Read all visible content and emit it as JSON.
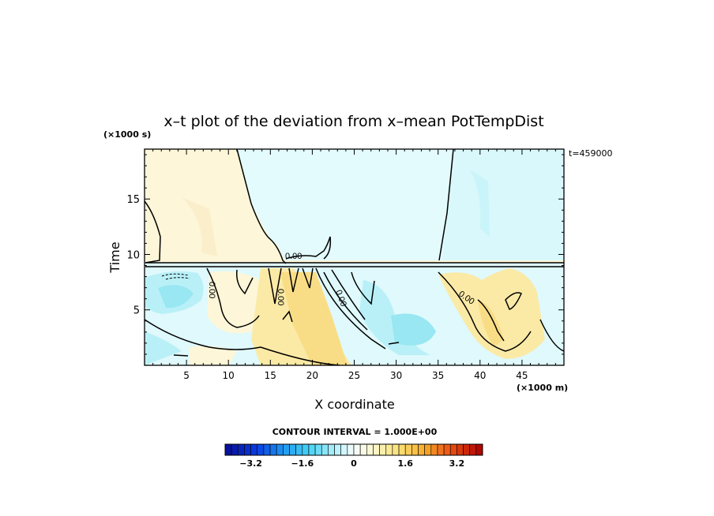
{
  "chart_data": {
    "type": "heatmap",
    "title": "x–t plot of the deviation from x–mean PotTempDist",
    "xlabel": "X coordinate",
    "ylabel": "Time",
    "x_unit": "(×1000 m)",
    "y_unit": "(×1000 s)",
    "xlim": [
      0,
      50
    ],
    "ylim": [
      0,
      19.5
    ],
    "x_ticks": [
      "5",
      "10",
      "15",
      "20",
      "25",
      "30",
      "35",
      "40",
      "45"
    ],
    "y_ticks": [
      "5",
      "10",
      "15"
    ],
    "time_stamp": "t=459000",
    "contour_interval_text": "CONTOUR INTERVAL = 1.000E+00",
    "contour_label": "0.00",
    "colorbar": {
      "min": -4.0,
      "max": 4.0,
      "tick_labels": [
        "−3.2",
        "−1.6",
        "0",
        "1.6",
        "3.2"
      ],
      "tick_values": [
        -3.2,
        -1.6,
        0,
        1.6,
        3.2
      ]
    },
    "colors": {
      "positive_light": "#fdf6d8",
      "positive_mid": "#fbeaa6",
      "negative_light": "#e3fbfd",
      "negative_mid": "#a9eef6",
      "extreme_negative": "#0b10a8",
      "extreme_positive": "#b00000"
    }
  }
}
